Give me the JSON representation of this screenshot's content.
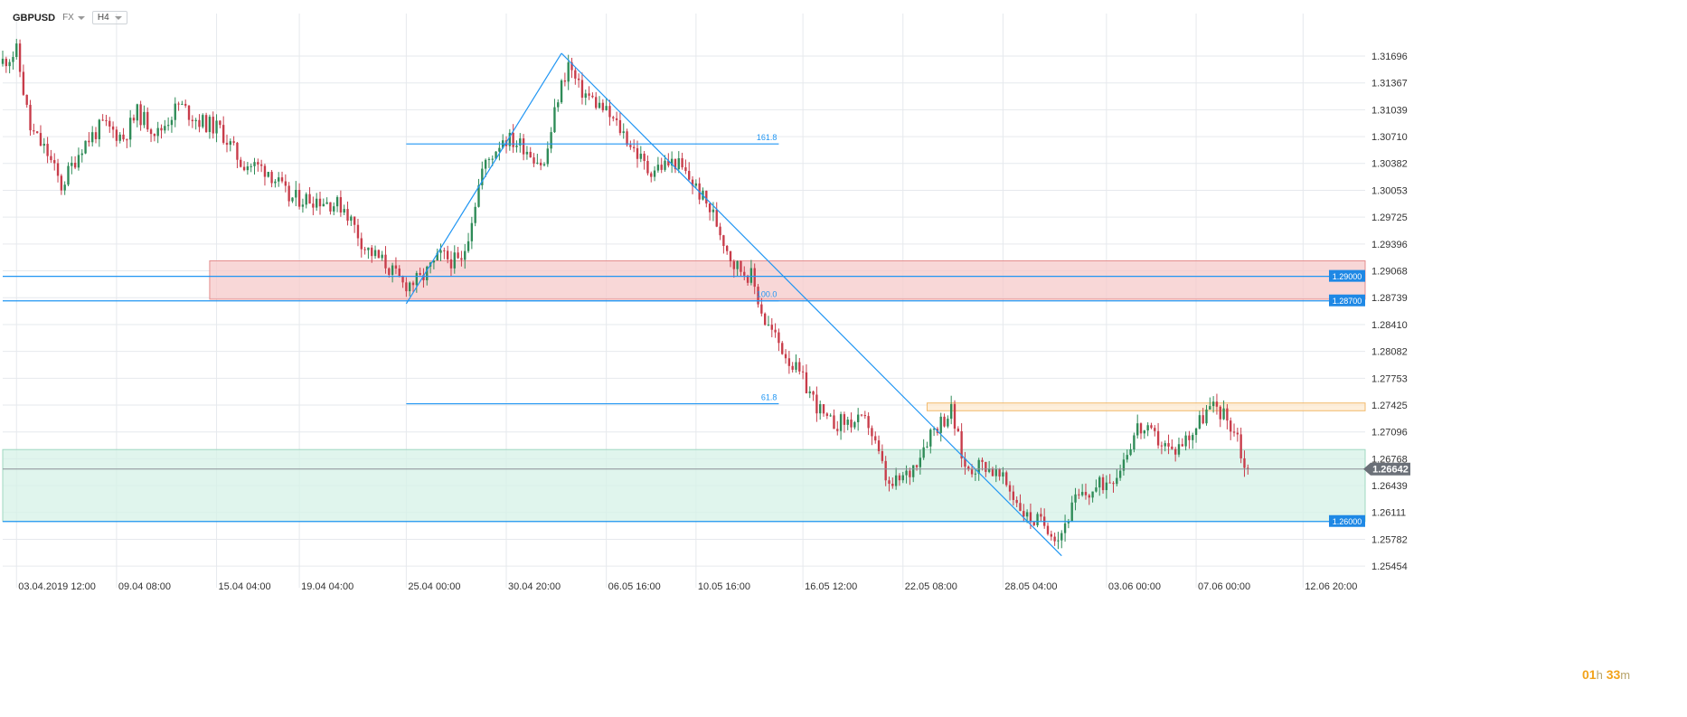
{
  "header": {
    "symbol": "GBPUSD",
    "market": "FX",
    "timeframe": "H4"
  },
  "timer": {
    "hours": "01",
    "hours_unit": "h",
    "minutes": "33",
    "minutes_unit": "m"
  },
  "colors": {
    "up": "#2e8b57",
    "down": "#c83c4a",
    "grid": "#e6e9ed",
    "line": "#2196f3",
    "axis_text": "#333333"
  },
  "chart_data": {
    "type": "candlestick",
    "title": "",
    "ylim": [
      1.253,
      1.3205
    ],
    "y_ticks": [
      "1.31696",
      "1.31367",
      "1.31039",
      "1.30710",
      "1.30382",
      "1.30053",
      "1.29725",
      "1.29396",
      "1.29068",
      "1.28739",
      "1.28410",
      "1.28082",
      "1.27753",
      "1.27425",
      "1.27096",
      "1.26768",
      "1.26439",
      "1.26111",
      "1.25782",
      "1.25454"
    ],
    "x_ticks": [
      {
        "label": "03.04.2019  12:00",
        "t": 4
      },
      {
        "label": "09.04  08:00",
        "t": 33
      },
      {
        "label": "15.04  04:00",
        "t": 62
      },
      {
        "label": "19.04  04:00",
        "t": 86
      },
      {
        "label": "25.04  00:00",
        "t": 117
      },
      {
        "label": "30.04  20:00",
        "t": 146
      },
      {
        "label": "06.05  16:00",
        "t": 175
      },
      {
        "label": "10.05  16:00",
        "t": 201
      },
      {
        "label": "16.05  12:00",
        "t": 232
      },
      {
        "label": "22.05  08:00",
        "t": 261
      },
      {
        "label": "28.05  04:00",
        "t": 290
      },
      {
        "label": "03.06  00:00",
        "t": 320
      },
      {
        "label": "07.06  00:00",
        "t": 346
      },
      {
        "label": "12.06  20:00",
        "t": 377
      }
    ],
    "t_range": [
      0,
      395
    ],
    "key_points": [
      {
        "t": 0,
        "v": 1.316
      },
      {
        "t": 5,
        "v": 1.3175
      },
      {
        "t": 9,
        "v": 1.308
      },
      {
        "t": 14,
        "v": 1.305
      },
      {
        "t": 18,
        "v": 1.301
      },
      {
        "t": 24,
        "v": 1.306
      },
      {
        "t": 30,
        "v": 1.3085
      },
      {
        "t": 36,
        "v": 1.307
      },
      {
        "t": 40,
        "v": 1.31
      },
      {
        "t": 46,
        "v": 1.3075
      },
      {
        "t": 52,
        "v": 1.311
      },
      {
        "t": 58,
        "v": 1.309
      },
      {
        "t": 64,
        "v": 1.308
      },
      {
        "t": 70,
        "v": 1.304
      },
      {
        "t": 78,
        "v": 1.303
      },
      {
        "t": 84,
        "v": 1.2995
      },
      {
        "t": 92,
        "v": 1.2995
      },
      {
        "t": 100,
        "v": 1.2985
      },
      {
        "t": 106,
        "v": 1.2935
      },
      {
        "t": 112,
        "v": 1.2915
      },
      {
        "t": 117,
        "v": 1.289
      },
      {
        "t": 122,
        "v": 1.2895
      },
      {
        "t": 128,
        "v": 1.2925
      },
      {
        "t": 134,
        "v": 1.2915
      },
      {
        "t": 140,
        "v": 1.303
      },
      {
        "t": 146,
        "v": 1.307
      },
      {
        "t": 152,
        "v": 1.306
      },
      {
        "t": 158,
        "v": 1.3035
      },
      {
        "t": 162,
        "v": 1.312
      },
      {
        "t": 165,
        "v": 1.316
      },
      {
        "t": 168,
        "v": 1.313
      },
      {
        "t": 175,
        "v": 1.3105
      },
      {
        "t": 181,
        "v": 1.3075
      },
      {
        "t": 188,
        "v": 1.303
      },
      {
        "t": 196,
        "v": 1.304
      },
      {
        "t": 201,
        "v": 1.3015
      },
      {
        "t": 207,
        "v": 1.2975
      },
      {
        "t": 213,
        "v": 1.2915
      },
      {
        "t": 218,
        "v": 1.29
      },
      {
        "t": 222,
        "v": 1.2845
      },
      {
        "t": 228,
        "v": 1.2805
      },
      {
        "t": 234,
        "v": 1.2765
      },
      {
        "t": 240,
        "v": 1.272
      },
      {
        "t": 246,
        "v": 1.2722
      },
      {
        "t": 252,
        "v": 1.272
      },
      {
        "t": 258,
        "v": 1.264
      },
      {
        "t": 264,
        "v": 1.266
      },
      {
        "t": 270,
        "v": 1.271
      },
      {
        "t": 276,
        "v": 1.2735
      },
      {
        "t": 280,
        "v": 1.2665
      },
      {
        "t": 286,
        "v": 1.267
      },
      {
        "t": 292,
        "v": 1.2645
      },
      {
        "t": 298,
        "v": 1.2605
      },
      {
        "t": 304,
        "v": 1.2595
      },
      {
        "t": 307,
        "v": 1.258
      },
      {
        "t": 312,
        "v": 1.2625
      },
      {
        "t": 318,
        "v": 1.264
      },
      {
        "t": 324,
        "v": 1.266
      },
      {
        "t": 330,
        "v": 1.2715
      },
      {
        "t": 336,
        "v": 1.27
      },
      {
        "t": 340,
        "v": 1.2685
      },
      {
        "t": 346,
        "v": 1.271
      },
      {
        "t": 350,
        "v": 1.2735
      },
      {
        "t": 353,
        "v": 1.274
      },
      {
        "t": 356,
        "v": 1.2725
      },
      {
        "t": 359,
        "v": 1.2705
      },
      {
        "t": 361,
        "v": 1.2664
      }
    ],
    "horizontal_levels": [
      {
        "value": 1.29,
        "label": "1.29000"
      },
      {
        "value": 1.287,
        "label": "1.28700"
      },
      {
        "value": 1.26,
        "label": "1.26000"
      }
    ],
    "current_price": {
      "value": 1.26642,
      "label": "1.26642"
    },
    "zones": [
      {
        "t0": 60,
        "t1": 395,
        "v0": 1.2872,
        "v1": 1.2919,
        "color": "#f6c9c9",
        "stroke": "#e48d8d"
      },
      {
        "t0": 0,
        "t1": 395,
        "v0": 1.26,
        "v1": 1.2688,
        "color": "#d6f1e7",
        "stroke": "#9fd8c1"
      },
      {
        "t0": 268,
        "t1": 395,
        "v0": 1.27355,
        "v1": 1.2745,
        "color": "#fde9cf",
        "stroke": "#f2b96b"
      }
    ],
    "fibonacci": {
      "t0": 117,
      "t1": 225,
      "levels": [
        {
          "label": "161.8",
          "value": 1.3062
        },
        {
          "label": "100.0",
          "value": 1.287
        },
        {
          "label": "61.8",
          "value": 1.2744
        }
      ]
    },
    "trend_lines": [
      {
        "t0": 117,
        "v0": 1.28665,
        "t1": 162,
        "v1": 1.3173
      },
      {
        "t0": 162,
        "v0": 1.3173,
        "t1": 307,
        "v1": 1.2558
      }
    ]
  }
}
